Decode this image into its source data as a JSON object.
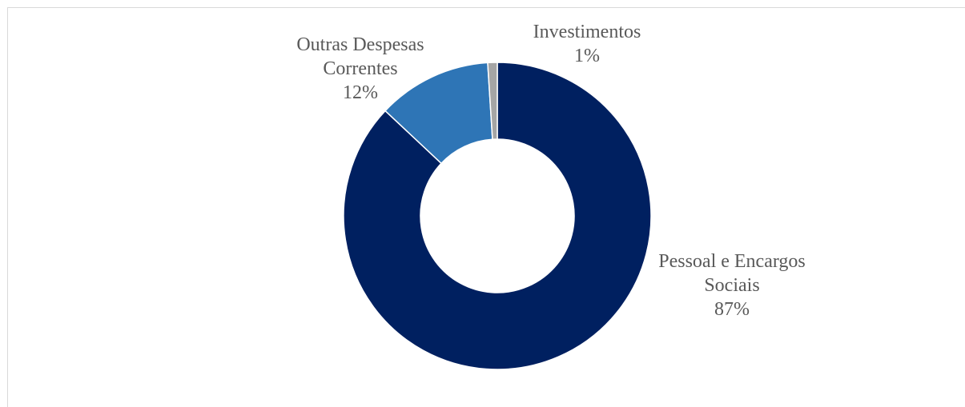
{
  "chart_data": {
    "type": "pie",
    "variant": "donut",
    "title": "",
    "categories": [
      "Pessoal e Encargos Sociais",
      "Outras Despesas Correntes",
      "Investimentos"
    ],
    "values": [
      87,
      12,
      1
    ],
    "unit": "%",
    "labels": [
      {
        "lines": [
          "Pessoal e Encargos",
          "Sociais"
        ],
        "value": "87%"
      },
      {
        "lines": [
          "Outras Despesas",
          "Correntes"
        ],
        "value": "12%"
      },
      {
        "lines": [
          "Investimentos"
        ],
        "value": "1%"
      }
    ],
    "colors": [
      "#002060",
      "#2e75b6",
      "#a5a5a5"
    ],
    "legend": "none"
  }
}
